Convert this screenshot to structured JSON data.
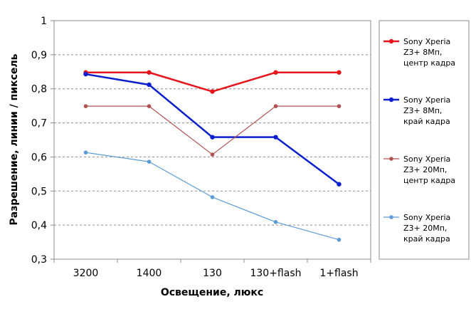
{
  "chart_data": {
    "type": "line",
    "title": "",
    "xlabel": "Освещение,  люкс",
    "ylabel": "Разрешение,  линии  / пиксель",
    "categories": [
      "3200",
      "1400",
      "130",
      "130+flash",
      "1+flash"
    ],
    "ylim": [
      0.3,
      1.0
    ],
    "yticks": [
      {
        "value": 1.0,
        "label": "1"
      },
      {
        "value": 0.9,
        "label": "0,9"
      },
      {
        "value": 0.8,
        "label": "0,8"
      },
      {
        "value": 0.7,
        "label": "0,7"
      },
      {
        "value": 0.6,
        "label": "0,6"
      },
      {
        "value": 0.5,
        "label": "0,5"
      },
      {
        "value": 0.4,
        "label": "0,4"
      },
      {
        "value": 0.3,
        "label": "0,3"
      }
    ],
    "grid": "horizontal",
    "legend_position": "right",
    "series": [
      {
        "name": "Sony Xperia Z3+ 8Мп, центр кадра",
        "legend_lines": [
          "Sony Xperia",
          "Z3+  8Мп,",
          "центр кадра"
        ],
        "color": "#e8141c",
        "weight": "thick",
        "values": [
          0.848,
          0.848,
          0.792,
          0.848,
          0.848
        ]
      },
      {
        "name": "Sony Xperia Z3+ 8Мп, край кадра",
        "legend_lines": [
          "Sony Xperia",
          "Z3+  8Мп,",
          "край кадра"
        ],
        "color": "#0b1fd0",
        "weight": "thick",
        "values": [
          0.843,
          0.812,
          0.658,
          0.658,
          0.52
        ]
      },
      {
        "name": "Sony Xperia Z3+ 20Мп, центр кадра",
        "legend_lines": [
          "Sony Xperia",
          "Z3+  20Мп,",
          "центр кадра"
        ],
        "color": "#b05050",
        "weight": "thin",
        "values": [
          0.749,
          0.749,
          0.607,
          0.749,
          0.749
        ]
      },
      {
        "name": "Sony Xperia Z3+ 20Мп, край кадра",
        "legend_lines": [
          "Sony Xperia",
          "Z3+  20Мп,",
          "край кадра"
        ],
        "color": "#5b9bd5",
        "weight": "thin",
        "values": [
          0.613,
          0.586,
          0.482,
          0.409,
          0.357
        ]
      }
    ]
  }
}
